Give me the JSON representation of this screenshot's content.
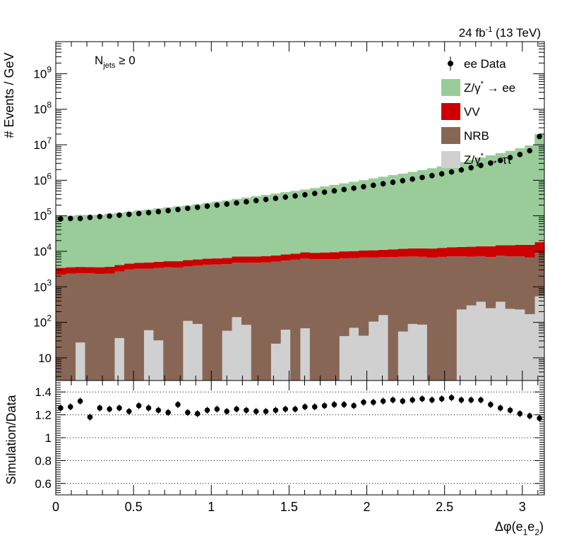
{
  "chart_data": {
    "type": "bar",
    "header": {
      "lumi": "24 fb",
      "lumi_exp": "-1",
      "energy": "(13 TeV)"
    },
    "selection": {
      "main": "N",
      "sub": "jets",
      "cond": "≥ 0"
    },
    "xlabel": {
      "main": "Δφ(e",
      "sub1": "1",
      "mid": "e",
      "sub2": "2",
      "end": ")"
    },
    "ylabel_top": "# Events / GeV",
    "ylabel_bottom": "Simulation/Data",
    "xlim": [
      0,
      3.1416
    ],
    "ylim_top": [
      2.3,
      8000000000
    ],
    "ylim_bottom": [
      0.5,
      1.5
    ],
    "y_scale_top": "log",
    "x_ticks": [
      "0",
      "0.5",
      "1",
      "1.5",
      "2",
      "2.5",
      "3"
    ],
    "y_ticks_top": [
      {
        "base": "10",
        "exp": "",
        "value": 10
      },
      {
        "base": "10",
        "exp": "2",
        "value": 100
      },
      {
        "base": "10",
        "exp": "3",
        "value": 1000
      },
      {
        "base": "10",
        "exp": "4",
        "value": 10000
      },
      {
        "base": "10",
        "exp": "5",
        "value": 100000
      },
      {
        "base": "10",
        "exp": "6",
        "value": 1000000
      },
      {
        "base": "10",
        "exp": "7",
        "value": 10000000
      },
      {
        "base": "10",
        "exp": "8",
        "value": 100000000
      },
      {
        "base": "10",
        "exp": "9",
        "value": 1000000000
      }
    ],
    "y_ticks_bottom": [
      "0.6",
      "0.8",
      "1",
      "1.2",
      "1.4"
    ],
    "gridlines_bottom": [
      0.6,
      0.8,
      1.0,
      1.2,
      1.4
    ],
    "n_bins": 50,
    "legend": {
      "placement": "top-right",
      "entries": [
        {
          "label": "ee Data",
          "color": "#000000"
        },
        {
          "label": "Z/γ",
          "sup": "*",
          "after": " → ee",
          "color": "#99cc99"
        },
        {
          "label": "VV",
          "color": "#cc0000"
        },
        {
          "label": "NRB",
          "color": "#886655"
        },
        {
          "label": "Z/γ",
          "sup": "*",
          "after": " → ττ",
          "color": "#d0d0d0"
        }
      ]
    },
    "series": [
      {
        "name": "Z/γ* → ττ",
        "color": "#d0d0d0",
        "values": [
          0,
          0,
          27,
          0,
          0,
          0,
          36,
          0,
          0,
          60,
          31,
          0,
          0,
          110,
          90,
          0,
          0,
          58,
          140,
          85,
          0,
          0,
          25,
          62,
          0,
          68,
          0,
          0,
          0,
          41,
          70,
          42,
          105,
          160,
          0,
          55,
          90,
          86,
          0,
          0,
          0,
          230,
          300,
          380,
          250,
          380,
          240,
          230,
          170,
          540
        ]
      },
      {
        "name": "NRB",
        "color": "#886655",
        "values": [
          2200,
          2350,
          2400,
          2400,
          2300,
          2350,
          2650,
          3100,
          3250,
          3200,
          3350,
          3550,
          3450,
          3650,
          3850,
          4200,
          4250,
          4300,
          4650,
          4700,
          4750,
          4850,
          5050,
          5400,
          5800,
          6250,
          5950,
          5950,
          5950,
          6300,
          6350,
          6650,
          6550,
          6650,
          6850,
          6950,
          7050,
          6900,
          6650,
          6950,
          7200,
          6950,
          6800,
          6900,
          6600,
          7150,
          6950,
          7000,
          6600,
          8500
        ]
      },
      {
        "name": "VV",
        "color": "#cc0000",
        "values": [
          1200,
          1200,
          1200,
          1200,
          1250,
          1300,
          1400,
          1400,
          1500,
          1600,
          1650,
          1700,
          1800,
          1900,
          1950,
          2000,
          2050,
          2100,
          2300,
          2300,
          2400,
          2500,
          2600,
          2700,
          2800,
          3000,
          3100,
          3300,
          3500,
          3600,
          3700,
          3900,
          4000,
          4200,
          4500,
          4700,
          4900,
          5100,
          5300,
          5500,
          5800,
          6000,
          6300,
          6600,
          7000,
          7300,
          7600,
          8000,
          8400,
          9000
        ]
      },
      {
        "name": "Z/γ* → ee",
        "color": "#99cc99",
        "values": [
          96000,
          97000,
          102000,
          102000,
          103000,
          111000,
          117000,
          126000,
          137000,
          145000,
          157000,
          168000,
          179000,
          190000,
          206000,
          226000,
          245000,
          264000,
          292000,
          320000,
          348000,
          378000,
          416000,
          454000,
          494000,
          540000,
          594000,
          660000,
          730000,
          810000,
          900000,
          1000000,
          1120000,
          1250000,
          1390000,
          1520000,
          1710000,
          1920000,
          2170000,
          2460000,
          2780000,
          3220000,
          3720000,
          4330000,
          5020000,
          5790000,
          6730000,
          7950000,
          9600000,
          20000000
        ]
      }
    ],
    "data": {
      "name": "ee Data",
      "values": [
        82000,
        84000,
        84000,
        90000,
        95000,
        98000,
        104000,
        110000,
        116000,
        123000,
        131000,
        140000,
        150000,
        162000,
        173000,
        186000,
        200000,
        214000,
        230000,
        248000,
        268000,
        288000,
        310000,
        336000,
        362000,
        392000,
        426000,
        462000,
        504000,
        550000,
        600000,
        660000,
        724000,
        798000,
        880000,
        974000,
        1080000,
        1200000,
        1350000,
        1520000,
        1720000,
        1960000,
        2260000,
        2620000,
        3060000,
        3640000,
        4360000,
        5320000,
        6800000,
        17000000
      ],
      "ratio": [
        1.26,
        1.27,
        1.32,
        1.18,
        1.26,
        1.25,
        1.26,
        1.23,
        1.28,
        1.26,
        1.24,
        1.22,
        1.29,
        1.22,
        1.21,
        1.24,
        1.25,
        1.23,
        1.25,
        1.24,
        1.23,
        1.23,
        1.24,
        1.25,
        1.25,
        1.27,
        1.27,
        1.28,
        1.29,
        1.29,
        1.28,
        1.31,
        1.31,
        1.32,
        1.33,
        1.32,
        1.33,
        1.34,
        1.33,
        1.34,
        1.35,
        1.33,
        1.33,
        1.33,
        1.29,
        1.26,
        1.24,
        1.21,
        1.19,
        1.17
      ]
    }
  }
}
